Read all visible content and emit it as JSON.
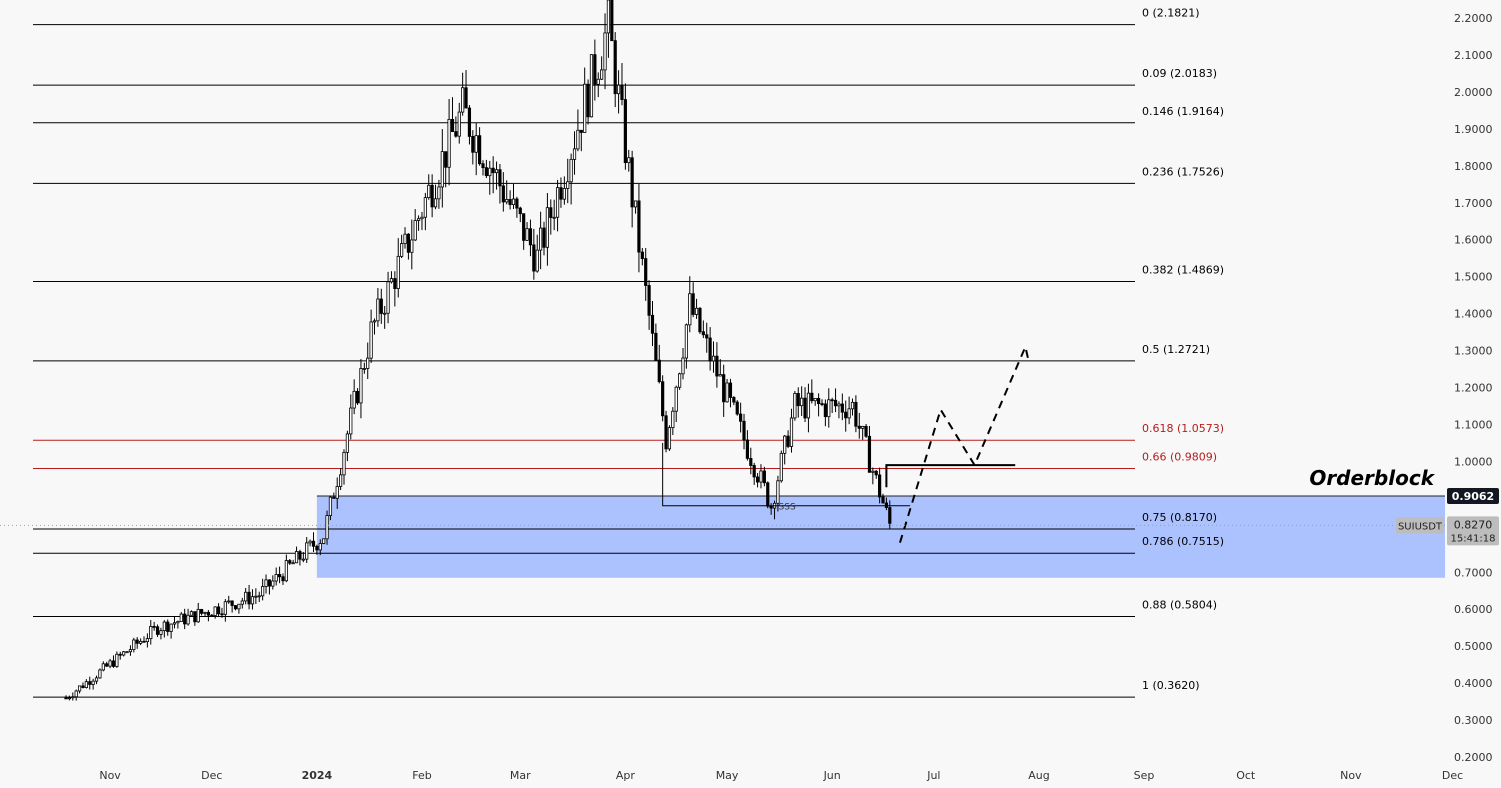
{
  "chart_data": {
    "type": "candlestick",
    "symbol": "SUIUSDT",
    "y_axis": {
      "min": 0.2,
      "max": 2.2,
      "ticks": [
        "2.2000",
        "2.1000",
        "2.0000",
        "1.9000",
        "1.8000",
        "1.7000",
        "1.6000",
        "1.5000",
        "1.4000",
        "1.3000",
        "1.2000",
        "1.1000",
        "1.0000",
        "0.9000",
        "0.8000",
        "0.7000",
        "0.6000",
        "0.5000",
        "0.4000",
        "0.3000",
        "0.2000"
      ],
      "tick_values": [
        2.2,
        2.1,
        2.0,
        1.9,
        1.8,
        1.7,
        1.6,
        1.5,
        1.4,
        1.3,
        1.2,
        1.1,
        1.0,
        0.9,
        0.8,
        0.7,
        0.6,
        0.5,
        0.4,
        0.3,
        0.2
      ]
    },
    "x_axis": {
      "labels": [
        "Nov",
        "Dec",
        "2024",
        "Feb",
        "Mar",
        "Apr",
        "May",
        "Jun",
        "Jul",
        "Aug",
        "Sep",
        "Oct",
        "Nov",
        "Dec"
      ],
      "bold": [
        false,
        false,
        true,
        false,
        false,
        false,
        false,
        false,
        false,
        false,
        false,
        false,
        false,
        false
      ]
    },
    "fib_levels": [
      {
        "label": "0 (2.1821)",
        "value": 2.1821,
        "color": "#000000"
      },
      {
        "label": "0.09 (2.0183)",
        "value": 2.0183,
        "color": "#000000"
      },
      {
        "label": "0.146 (1.9164)",
        "value": 1.9164,
        "color": "#000000"
      },
      {
        "label": "0.236 (1.7526)",
        "value": 1.7526,
        "color": "#000000"
      },
      {
        "label": "0.382 (1.4869)",
        "value": 1.4869,
        "color": "#000000"
      },
      {
        "label": "0.5 (1.2721)",
        "value": 1.2721,
        "color": "#000000"
      },
      {
        "label": "0.618 (1.0573)",
        "value": 1.0573,
        "color": "#b71c1c"
      },
      {
        "label": "0.66 (0.9809)",
        "value": 0.9809,
        "color": "#b71c1c"
      },
      {
        "label": "0.75 (0.8170)",
        "value": 0.817,
        "color": "#000000"
      },
      {
        "label": "0.786 (0.7515)",
        "value": 0.7515,
        "color": "#000000"
      },
      {
        "label": "0.88 (0.5804)",
        "value": 0.5804,
        "color": "#000000"
      },
      {
        "label": "1 (0.3620)",
        "value": 0.362,
        "color": "#000000"
      }
    ],
    "orderblock": {
      "label": "Orderblock",
      "top": 0.9062,
      "bottom": 0.685,
      "color": "#a8bfff"
    },
    "sss_label": "SSS",
    "current_price": {
      "symbol": "SUIUSDT",
      "price": "0.8270",
      "countdown": "15:41:18",
      "value": 0.827
    },
    "orderblock_top_label": "0.9062",
    "key_points": [
      {
        "date": "2023-10-19",
        "close": 0.36
      },
      {
        "date": "2023-11-15",
        "close": 0.55
      },
      {
        "date": "2023-12-15",
        "close": 0.64
      },
      {
        "date": "2024-01-03",
        "close": 0.8
      },
      {
        "date": "2024-01-17",
        "close": 1.35
      },
      {
        "date": "2024-02-13",
        "close": 1.95
      },
      {
        "date": "2024-03-06",
        "close": 1.55
      },
      {
        "date": "2024-03-27",
        "close": 2.18
      },
      {
        "date": "2024-04-13",
        "close": 1.06
      },
      {
        "date": "2024-04-20",
        "close": 1.42
      },
      {
        "date": "2024-05-14",
        "close": 0.88
      },
      {
        "date": "2024-05-21",
        "close": 1.15
      },
      {
        "date": "2024-06-07",
        "close": 1.15
      },
      {
        "date": "2024-06-18",
        "close": 0.83
      }
    ],
    "projection": [
      {
        "date": "2024-06-21",
        "value": 0.78
      },
      {
        "date": "2024-07-03",
        "value": 1.14
      },
      {
        "date": "2024-07-13",
        "value": 0.99
      },
      {
        "date": "2024-07-28",
        "value": 1.31
      },
      {
        "date": "2024-07-29",
        "value": 1.27
      }
    ]
  }
}
